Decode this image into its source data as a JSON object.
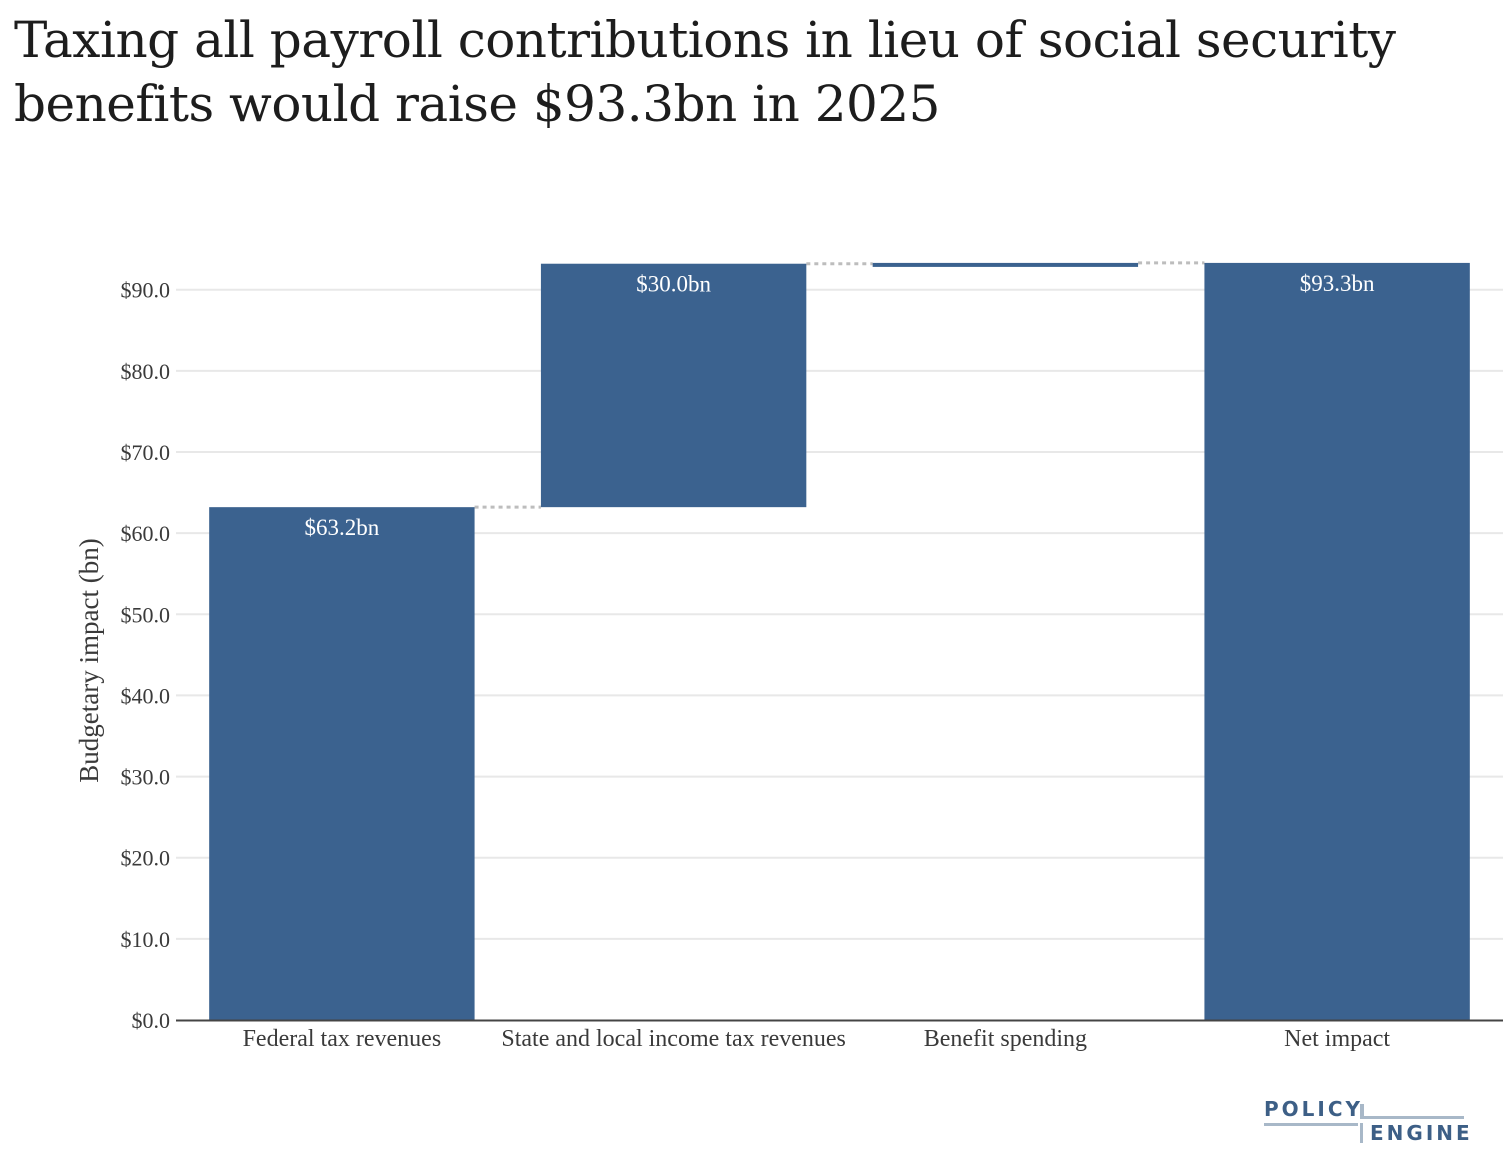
{
  "title": "Taxing all payroll contributions in lieu of social security benefits would raise $93.3bn in 2025",
  "logo": {
    "line1": "POLICY",
    "line2": "ENGINE"
  },
  "colors": {
    "bar": "#3b628f",
    "grid": "#e8e8e8",
    "connector": "#bdbdbd",
    "axis": "#444444"
  },
  "chart_data": {
    "type": "waterfall",
    "title": "Taxing all payroll contributions in lieu of social security benefits would raise $93.3bn in 2025",
    "xlabel": "",
    "ylabel": "Budgetary impact (bn)",
    "ylim": [
      0,
      96
    ],
    "yticks": [
      0,
      10,
      20,
      30,
      40,
      50,
      60,
      70,
      80,
      90
    ],
    "ytick_labels": [
      "$0.0",
      "$10.0",
      "$20.0",
      "$30.0",
      "$40.0",
      "$50.0",
      "$60.0",
      "$70.0",
      "$80.0",
      "$90.0"
    ],
    "categories": [
      "Federal tax revenues",
      "State and local income tax revenues",
      "Benefit spending",
      "Net impact"
    ],
    "values": [
      63.2,
      30.0,
      0.1,
      93.3
    ],
    "bases": [
      0,
      63.2,
      93.2,
      0
    ],
    "data_labels": [
      "$63.2bn",
      "$30.0bn",
      "",
      "$93.3bn"
    ],
    "grid": true,
    "legend": "none"
  }
}
